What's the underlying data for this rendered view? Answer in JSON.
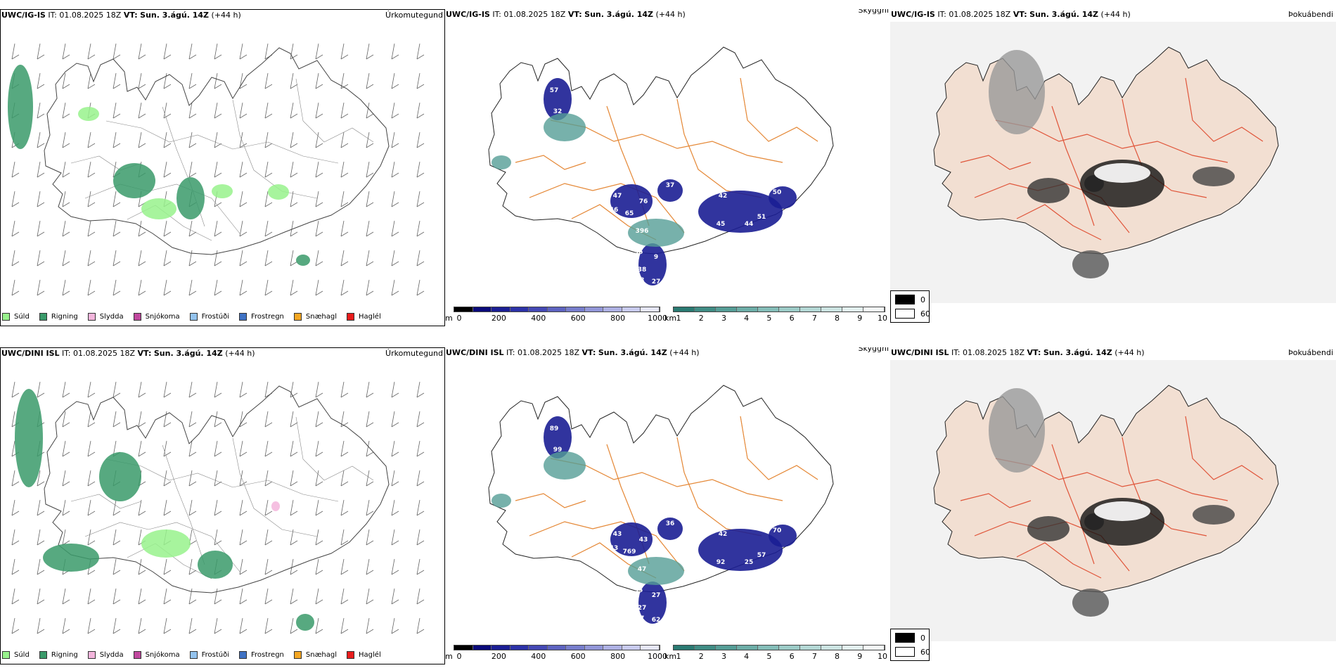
{
  "header": {
    "run_time_label": "IT:",
    "run_time": "01.08.2025 18Z",
    "valid_time_label": "VT:",
    "valid_time": "Sun. 3.ágú. 14Z",
    "lead": "(+44 h)"
  },
  "rows": [
    {
      "model": "UWC/IG-IS",
      "precip_title": "Úrkomutegund",
      "cloud_title": "Skyggni",
      "fog_title": "Þokuábendi",
      "visibility_labels": [
        "47",
        "37",
        "42",
        "46",
        "65",
        "76",
        "396",
        "45",
        "44",
        "51",
        "50",
        "56",
        "9",
        "38",
        "28",
        "27",
        "26",
        "32",
        "57"
      ]
    },
    {
      "model": "UWC/DINI ISL",
      "precip_title": "Úrkomutegund",
      "cloud_title": "Skyggni",
      "fog_title": "Þokuábendi",
      "visibility_labels": [
        "43",
        "36",
        "42",
        "43",
        "769",
        "43",
        "47",
        "92",
        "25",
        "57",
        "70",
        "35",
        "27",
        "27",
        "37",
        "62",
        "63",
        "99",
        "89"
      ]
    }
  ],
  "precip_legend": [
    {
      "label": "Súld",
      "color": "#98f28c"
    },
    {
      "label": "Rigning",
      "color": "#3a9a6a"
    },
    {
      "label": "Slydda",
      "color": "#f3b5dc"
    },
    {
      "label": "Snjókoma",
      "color": "#c0479e"
    },
    {
      "label": "Frostúði",
      "color": "#93c3ee"
    },
    {
      "label": "Frostregn",
      "color": "#3f72c4"
    },
    {
      "label": "Snæhagl",
      "color": "#f4a623"
    },
    {
      "label": "Haglél",
      "color": "#e81c1c"
    }
  ],
  "cloud_base_bar": {
    "unit": "m",
    "ticks": [
      "0",
      "200",
      "400",
      "600",
      "800",
      "1000"
    ],
    "colors": [
      "#000000",
      "#0a0a7a",
      "#1b1e94",
      "#2c32a8",
      "#4448b4",
      "#5d63c0",
      "#777dcc",
      "#9296d8",
      "#aeb1e4",
      "#c9cbee",
      "#e6e7f8"
    ]
  },
  "visibility_bar": {
    "unit": "km",
    "ticks": [
      "1",
      "2",
      "3",
      "4",
      "5",
      "6",
      "7",
      "8",
      "9",
      "10"
    ],
    "colors": [
      "#2a7a72",
      "#3f8c84",
      "#559d96",
      "#6cadA7",
      "#84bdb8",
      "#9ccbc7",
      "#b4d8d5",
      "#cce4e2",
      "#e3f0ef",
      "#f4f9f9"
    ]
  },
  "fog_legend": [
    {
      "label": "0",
      "color": "#000000"
    },
    {
      "label": "60",
      "color": "#ffffff"
    }
  ]
}
